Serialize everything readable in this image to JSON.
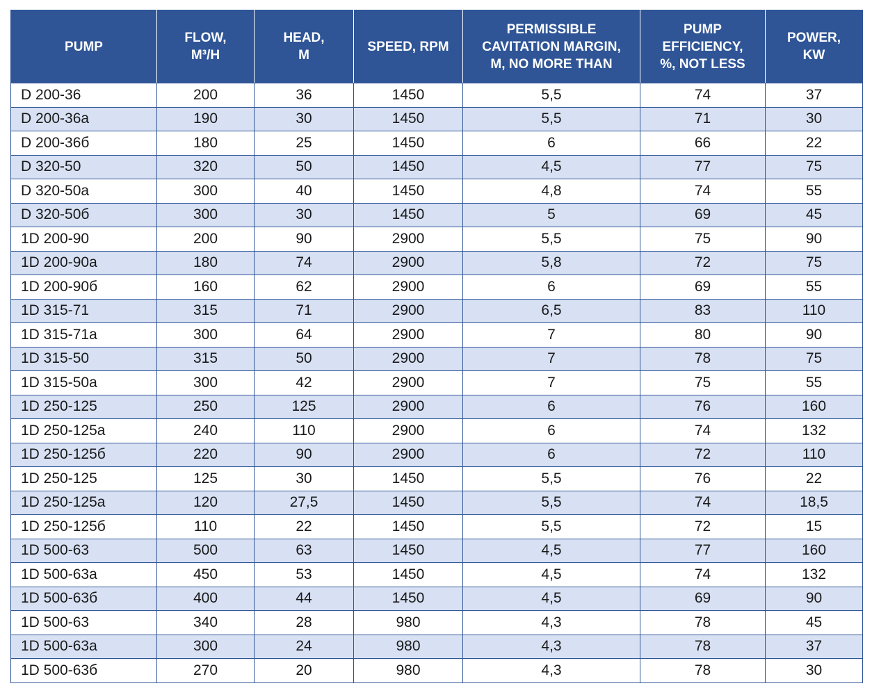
{
  "table": {
    "columns": [
      "PUMP",
      "FLOW,\nM³/H",
      "HEAD,\nM",
      "SPEED, RPM",
      "PERMISSIBLE\nCAVITATION MARGIN,\nM, NO MORE THAN",
      "PUMP\nEFFICIENCY,\n%, NOT LESS",
      "POWER,\nKW"
    ],
    "rows": [
      [
        "D 200-36",
        "200",
        "36",
        "1450",
        "5,5",
        "74",
        "37"
      ],
      [
        "D 200-36a",
        "190",
        "30",
        "1450",
        "5,5",
        "71",
        "30"
      ],
      [
        "D 200-36б",
        "180",
        "25",
        "1450",
        "6",
        "66",
        "22"
      ],
      [
        "D 320-50",
        "320",
        "50",
        "1450",
        "4,5",
        "77",
        "75"
      ],
      [
        "D 320-50a",
        "300",
        "40",
        "1450",
        "4,8",
        "74",
        "55"
      ],
      [
        "D 320-50б",
        "300",
        "30",
        "1450",
        "5",
        "69",
        "45"
      ],
      [
        "1D 200-90",
        "200",
        "90",
        "2900",
        "5,5",
        "75",
        "90"
      ],
      [
        "1D 200-90a",
        "180",
        "74",
        "2900",
        "5,8",
        "72",
        "75"
      ],
      [
        "1D 200-90б",
        "160",
        "62",
        "2900",
        "6",
        "69",
        "55"
      ],
      [
        "1D 315-71",
        "315",
        "71",
        "2900",
        "6,5",
        "83",
        "110"
      ],
      [
        "1D 315-71a",
        "300",
        "64",
        "2900",
        "7",
        "80",
        "90"
      ],
      [
        "1D 315-50",
        "315",
        "50",
        "2900",
        "7",
        "78",
        "75"
      ],
      [
        "1D 315-50a",
        "300",
        "42",
        "2900",
        "7",
        "75",
        "55"
      ],
      [
        "1D 250-125",
        "250",
        "125",
        "2900",
        "6",
        "76",
        "160"
      ],
      [
        "1D 250-125a",
        "240",
        "110",
        "2900",
        "6",
        "74",
        "132"
      ],
      [
        "1D 250-125б",
        "220",
        "90",
        "2900",
        "6",
        "72",
        "110"
      ],
      [
        "1D 250-125",
        "125",
        "30",
        "1450",
        "5,5",
        "76",
        "22"
      ],
      [
        "1D 250-125a",
        "120",
        "27,5",
        "1450",
        "5,5",
        "74",
        "18,5"
      ],
      [
        "1D 250-125б",
        "110",
        "22",
        "1450",
        "5,5",
        "72",
        "15"
      ],
      [
        "1D 500-63",
        "500",
        "63",
        "1450",
        "4,5",
        "77",
        "160"
      ],
      [
        "1D 500-63a",
        "450",
        "53",
        "1450",
        "4,5",
        "74",
        "132"
      ],
      [
        "1D 500-63б",
        "400",
        "44",
        "1450",
        "4,5",
        "69",
        "90"
      ],
      [
        "1D 500-63",
        "340",
        "28",
        "980",
        "4,3",
        "78",
        "45"
      ],
      [
        "1D 500-63a",
        "300",
        "24",
        "980",
        "4,3",
        "78",
        "37"
      ],
      [
        "1D 500-63б",
        "270",
        "20",
        "980",
        "4,3",
        "78",
        "30"
      ]
    ]
  },
  "colors": {
    "header_bg": "#2f5597",
    "header_text": "#ffffff",
    "row_alt_bg": "#d8e1f3",
    "border": "#2f5597",
    "body_text": "#1a1a1a"
  }
}
